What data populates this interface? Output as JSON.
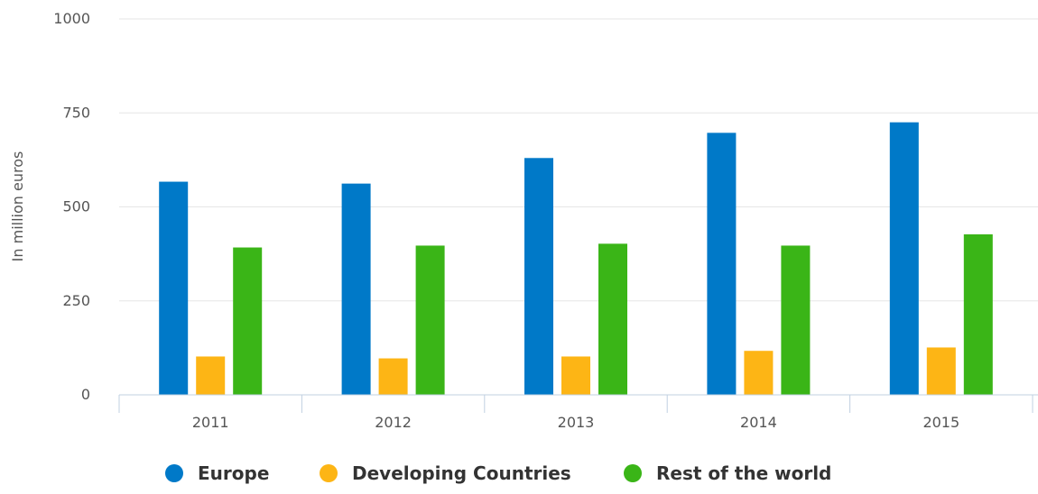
{
  "chart_data": {
    "type": "bar",
    "categories": [
      "2011",
      "2012",
      "2013",
      "2014",
      "2015"
    ],
    "series": [
      {
        "name": "Europe",
        "color": "#0079c8",
        "values": [
          567,
          562,
          630,
          697,
          725
        ]
      },
      {
        "name": "Developing Countries",
        "color": "#fdb515",
        "values": [
          102,
          97,
          102,
          117,
          126
        ]
      },
      {
        "name": "Rest of the world",
        "color": "#3ab517",
        "values": [
          392,
          397,
          402,
          397,
          427
        ]
      }
    ],
    "yticks": [
      0,
      250,
      500,
      750,
      1000
    ],
    "ylabel": "In million euros",
    "xlabel": "",
    "ylim": [
      0,
      1000
    ],
    "grid": true,
    "legend_position": "bottom-center"
  }
}
